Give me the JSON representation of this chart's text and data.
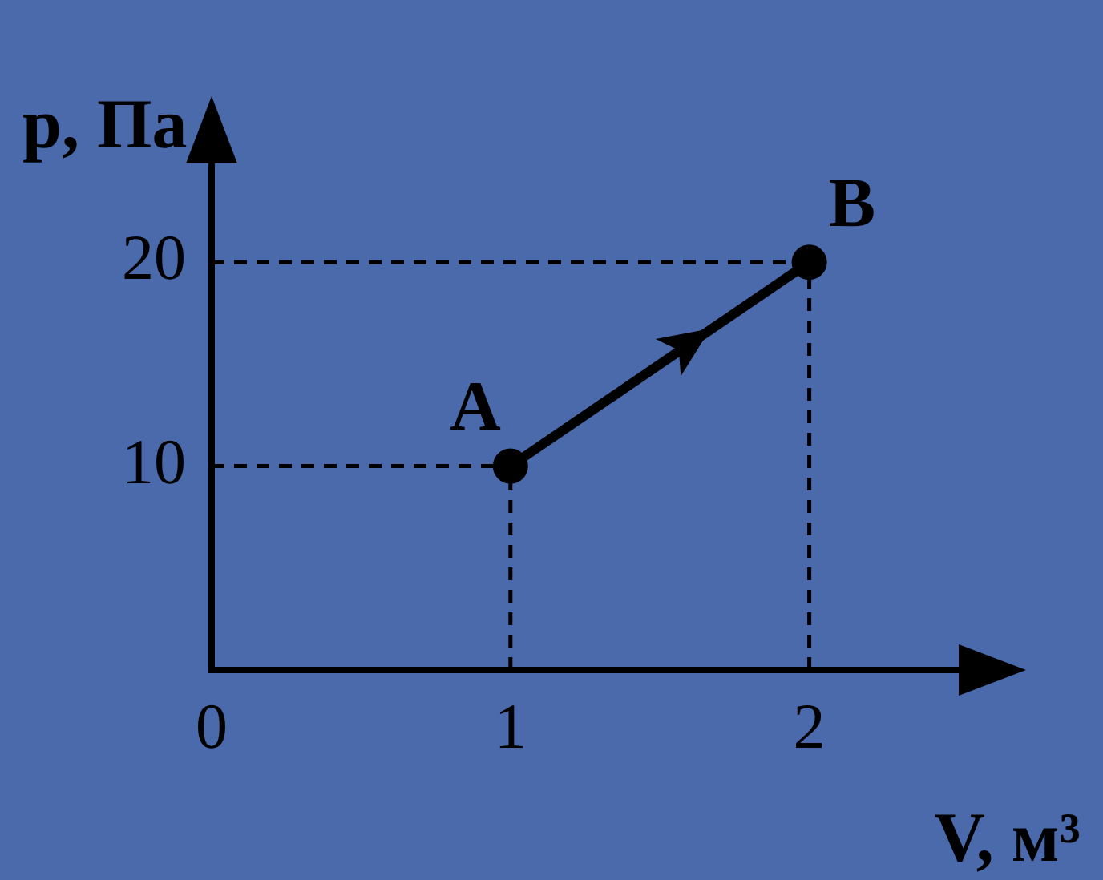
{
  "chart_data": {
    "type": "line",
    "xlabel": "V, м³",
    "ylabel": "p, Па",
    "series": [
      {
        "color": "#000000",
        "x": [
          1,
          2
        ],
        "values": [
          10,
          20
        ]
      }
    ],
    "marker": "circle",
    "line_style": "solid",
    "xlim": [
      0,
      2.5
    ],
    "xticks": [
      0,
      1,
      2
    ],
    "ylim": [
      0,
      25
    ],
    "yticks": [
      10,
      20
    ],
    "grid": false,
    "legend": false,
    "ref_lines": [
      {
        "axis": "x",
        "value": 1,
        "line_style": "dashed",
        "color": "#000000"
      },
      {
        "axis": "x",
        "value": 2,
        "line_style": "dashed",
        "color": "#000000"
      },
      {
        "axis": "y",
        "value": 10,
        "line_style": "dashed",
        "color": "#000000"
      },
      {
        "axis": "y",
        "value": 20,
        "line_style": "dashed",
        "color": "#000000"
      }
    ],
    "annotations": [
      {
        "text": "A",
        "x": 1,
        "y": 10
      },
      {
        "text": "B",
        "x": 2,
        "y": 20
      }
    ]
  }
}
